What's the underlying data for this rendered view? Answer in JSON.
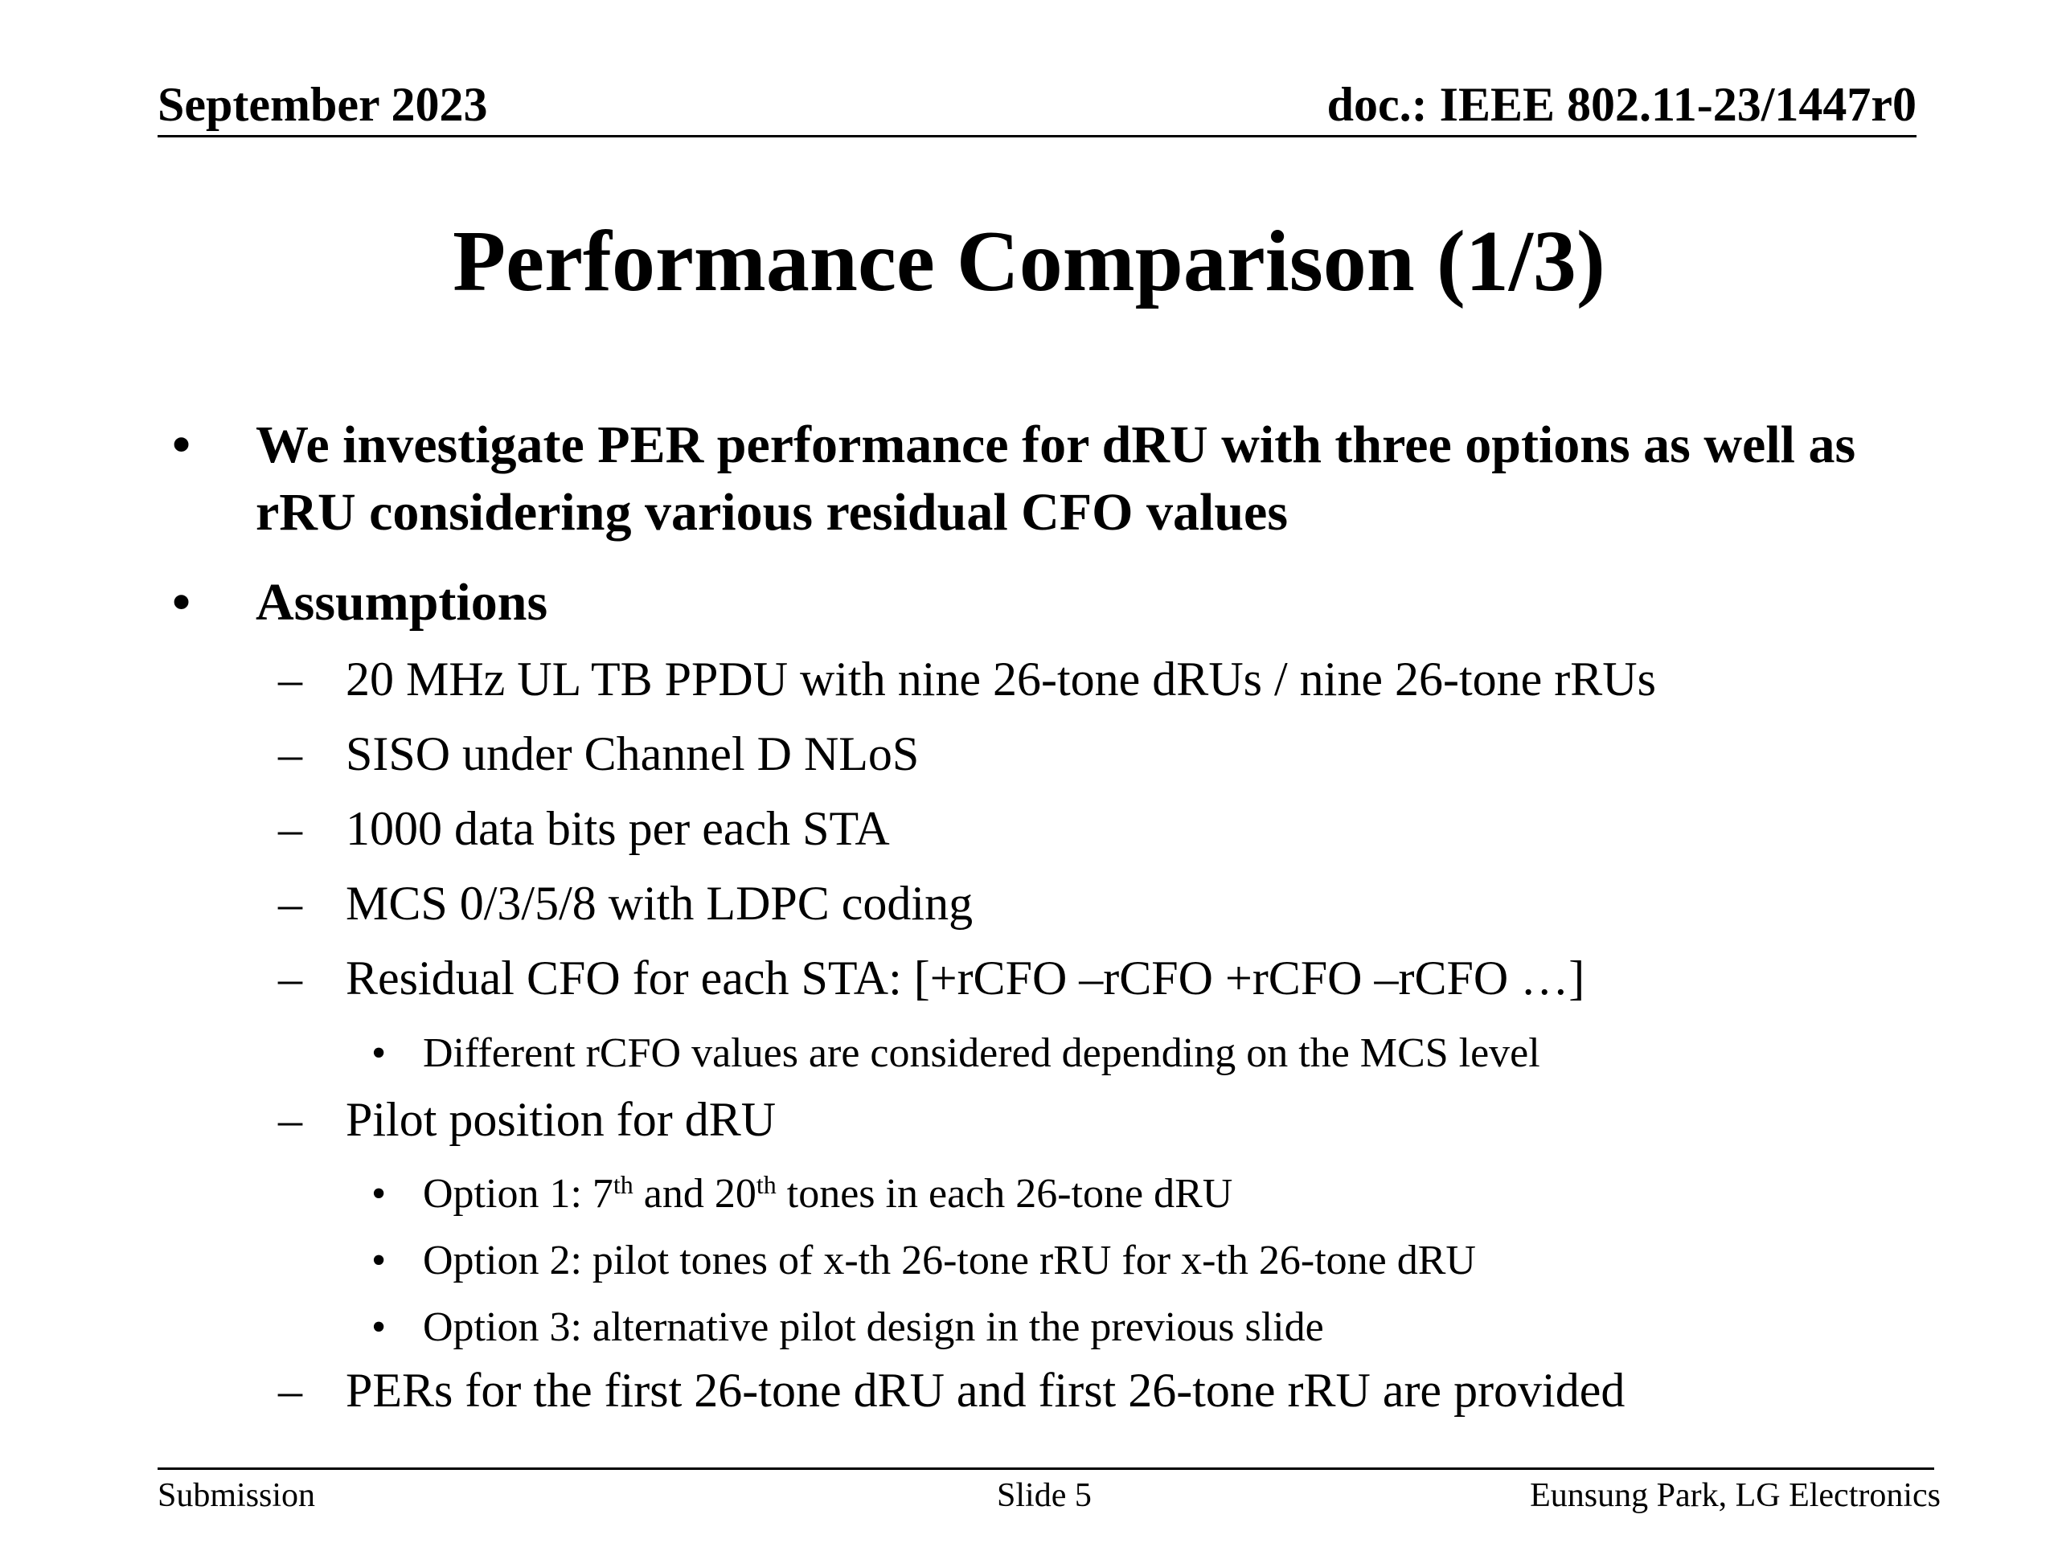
{
  "header": {
    "date": "September 2023",
    "doc": "doc.: IEEE 802.11-23/1447r0"
  },
  "title": "Performance Comparison (1/3)",
  "bullets": [
    {
      "marker": "•",
      "text": "We investigate PER performance for dRU with three options as well as rRU considering various residual CFO values"
    },
    {
      "marker": "•",
      "text": "Assumptions"
    }
  ],
  "assumptions": {
    "dash": "–",
    "items": [
      "20 MHz UL TB PPDU with nine 26-tone dRUs / nine 26-tone rRUs",
      "SISO under Channel D NLoS",
      "1000 data bits per each STA",
      "MCS 0/3/5/8 with LDPC coding",
      "Residual CFO for each STA: [+rCFO –rCFO +rCFO –rCFO …]",
      "Pilot position for dRU",
      "PERs for the first 26-tone dRU and first 26-tone rRU are provided"
    ],
    "sub_marker": "•",
    "cfo_note": "Different rCFO values are considered depending on the MCS level",
    "pilot_options": {
      "option1": {
        "prefix": "Option 1: 7",
        "sup1": "th",
        "middle": " and 20",
        "sup2": "th",
        "suffix": " tones in each 26-tone dRU"
      },
      "option2": "Option 2: pilot tones of x-th 26-tone rRU for x-th 26-tone dRU",
      "option3": "Option 3: alternative pilot design in the previous slide"
    }
  },
  "footer": {
    "left": "Submission",
    "center": "Slide 5",
    "right": "Eunsung Park, LG Electronics"
  }
}
